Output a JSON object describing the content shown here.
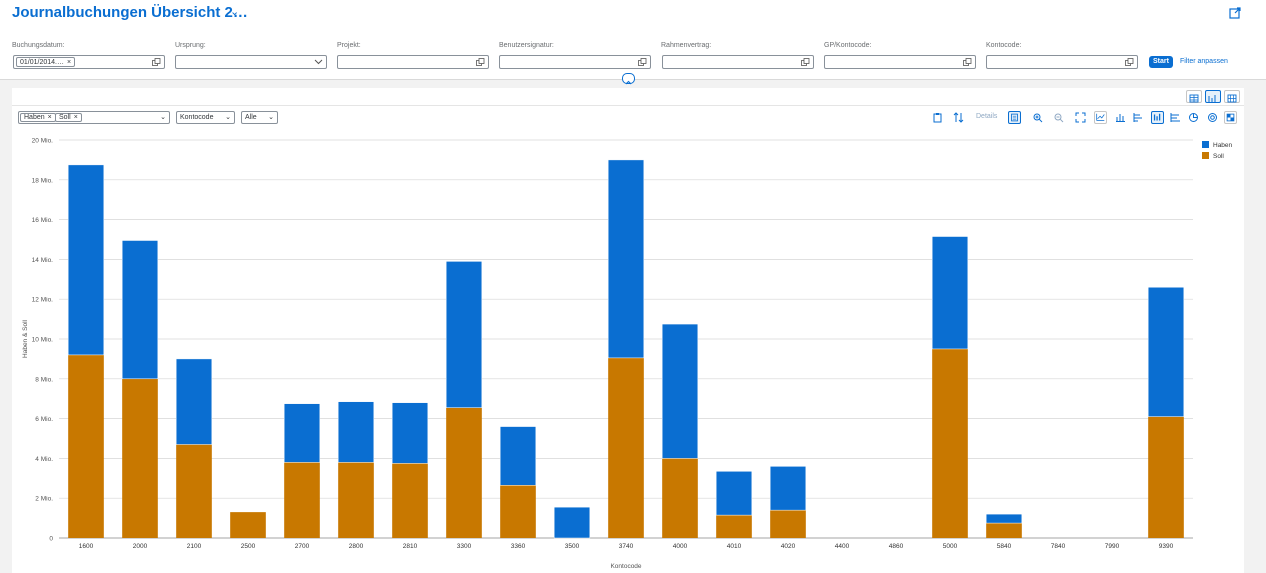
{
  "header": {
    "title": "Journalbuchungen Übersicht 2…"
  },
  "filters": [
    {
      "label": "Buchungsdatum:",
      "token": "01/01/2014.…",
      "type": "value-help"
    },
    {
      "label": "Ursprung:",
      "type": "dropdown"
    },
    {
      "label": "Projekt:",
      "type": "value-help"
    },
    {
      "label": "Benutzersignatur:",
      "type": "value-help"
    },
    {
      "label": "Rahmenvertrag:",
      "type": "value-help"
    },
    {
      "label": "GP/Kontocode:",
      "type": "value-help"
    },
    {
      "label": "Kontocode:",
      "type": "value-help"
    }
  ],
  "filterbar": {
    "start_label": "Start",
    "adapt_label": "Filter anpassen"
  },
  "toolbar": {
    "measures": [
      "Haben",
      "Soll"
    ],
    "dimension": "Kontocode",
    "scope": "Alle",
    "details_label": "Details"
  },
  "colors": {
    "haben": "#0a6ed1",
    "soll": "#c87800",
    "accent": "#0a6ed1"
  },
  "chart_data": {
    "type": "bar",
    "stacked": true,
    "categories": [
      "1600",
      "2000",
      "2100",
      "2500",
      "2700",
      "2800",
      "2810",
      "3300",
      "3360",
      "3500",
      "3740",
      "4000",
      "4010",
      "4020",
      "4400",
      "4860",
      "5000",
      "5840",
      "7840",
      "7990",
      "9390"
    ],
    "series": [
      {
        "name": "Soll",
        "values": [
          9.2,
          8.0,
          4.7,
          1.3,
          3.8,
          3.8,
          3.75,
          6.55,
          2.65,
          0,
          9.05,
          4.0,
          1.15,
          1.4,
          0,
          0,
          9.5,
          0.75,
          0,
          0,
          6.1
        ]
      },
      {
        "name": "Haben",
        "values": [
          9.55,
          6.95,
          4.3,
          0,
          2.95,
          3.05,
          3.05,
          7.35,
          2.95,
          1.55,
          9.95,
          6.75,
          2.2,
          2.2,
          0,
          0,
          5.65,
          0.45,
          0,
          0,
          6.5
        ]
      }
    ],
    "ylim": [
      0,
      20
    ],
    "yticks": [
      "0",
      "2 Mio.",
      "4 Mio.",
      "6 Mio.",
      "8 Mio.",
      "10 Mio.",
      "12 Mio.",
      "14 Mio.",
      "16 Mio.",
      "18 Mio.",
      "20 Mio."
    ],
    "xlabel": "Kontocode",
    "ylabel": "Haben & Soll",
    "legend": [
      "Haben",
      "Soll"
    ],
    "legend_position": "top-right",
    "grid": true
  }
}
